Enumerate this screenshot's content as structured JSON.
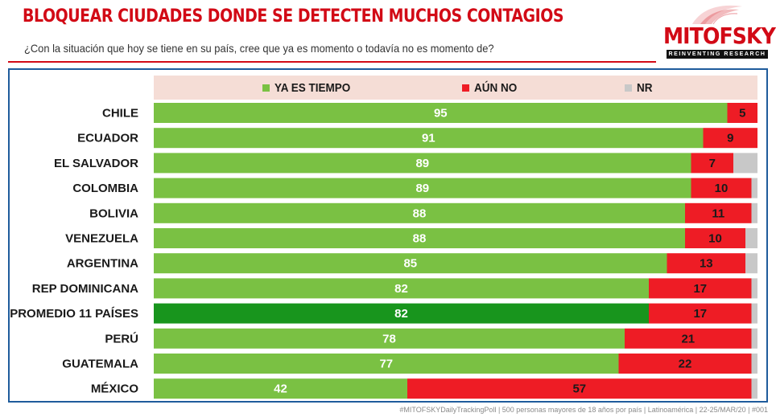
{
  "header": {
    "title": "BLOQUEAR CIUDADES DONDE SE DETECTEN MUCHOS CONTAGIOS",
    "question": "¿Con la situación que hoy se tiene en su país, cree que ya es momento o todavía no es momento de?"
  },
  "logo": {
    "name": "MITOFSKY",
    "tagline": "REINVENTING RESEARCH",
    "icon": "eagle-swoosh-icon"
  },
  "legend": [
    {
      "label": "YA ES TIEMPO",
      "color": "#7ac143"
    },
    {
      "label": "AÚN NO",
      "color": "#ee1c25"
    },
    {
      "label": "NR",
      "color": "#c8c8c8"
    }
  ],
  "footer": "#MITOFSKYDailyTrackingPoll | 500 personas mayores de 18 años por país | Latinoamérica | 22-25/MAR/20 | #001",
  "chart_data": {
    "type": "bar",
    "orientation": "horizontal",
    "stacked": true,
    "categories": [
      "CHILE",
      "ECUADOR",
      "EL SALVADOR",
      "COLOMBIA",
      "BOLIVIA",
      "VENEZUELA",
      "ARGENTINA",
      "REP DOMINICANA",
      "PROMEDIO 11 PAÍSES",
      "PERÚ",
      "GUATEMALA",
      "MÉXICO"
    ],
    "series": [
      {
        "name": "YA ES TIEMPO",
        "color": "#7ac143",
        "values": [
          95,
          91,
          89,
          89,
          88,
          88,
          85,
          82,
          82,
          78,
          77,
          42
        ]
      },
      {
        "name": "AÚN NO",
        "color": "#ee1c25",
        "values": [
          5,
          9,
          7,
          10,
          11,
          10,
          13,
          17,
          17,
          21,
          22,
          57
        ]
      },
      {
        "name": "NR",
        "color": "#c8c8c8",
        "values": [
          0,
          0,
          4,
          1,
          1,
          2,
          2,
          1,
          1,
          1,
          1,
          1
        ]
      }
    ],
    "highlight": {
      "category": "PROMEDIO 11 PAÍSES",
      "color": "#18951d"
    },
    "value_labels": {
      "YA ES TIEMPO": "#ffffff",
      "AÚN NO": "#1a1a1a"
    },
    "xlim": [
      0,
      100
    ],
    "legend_position": "top",
    "grid": false
  }
}
